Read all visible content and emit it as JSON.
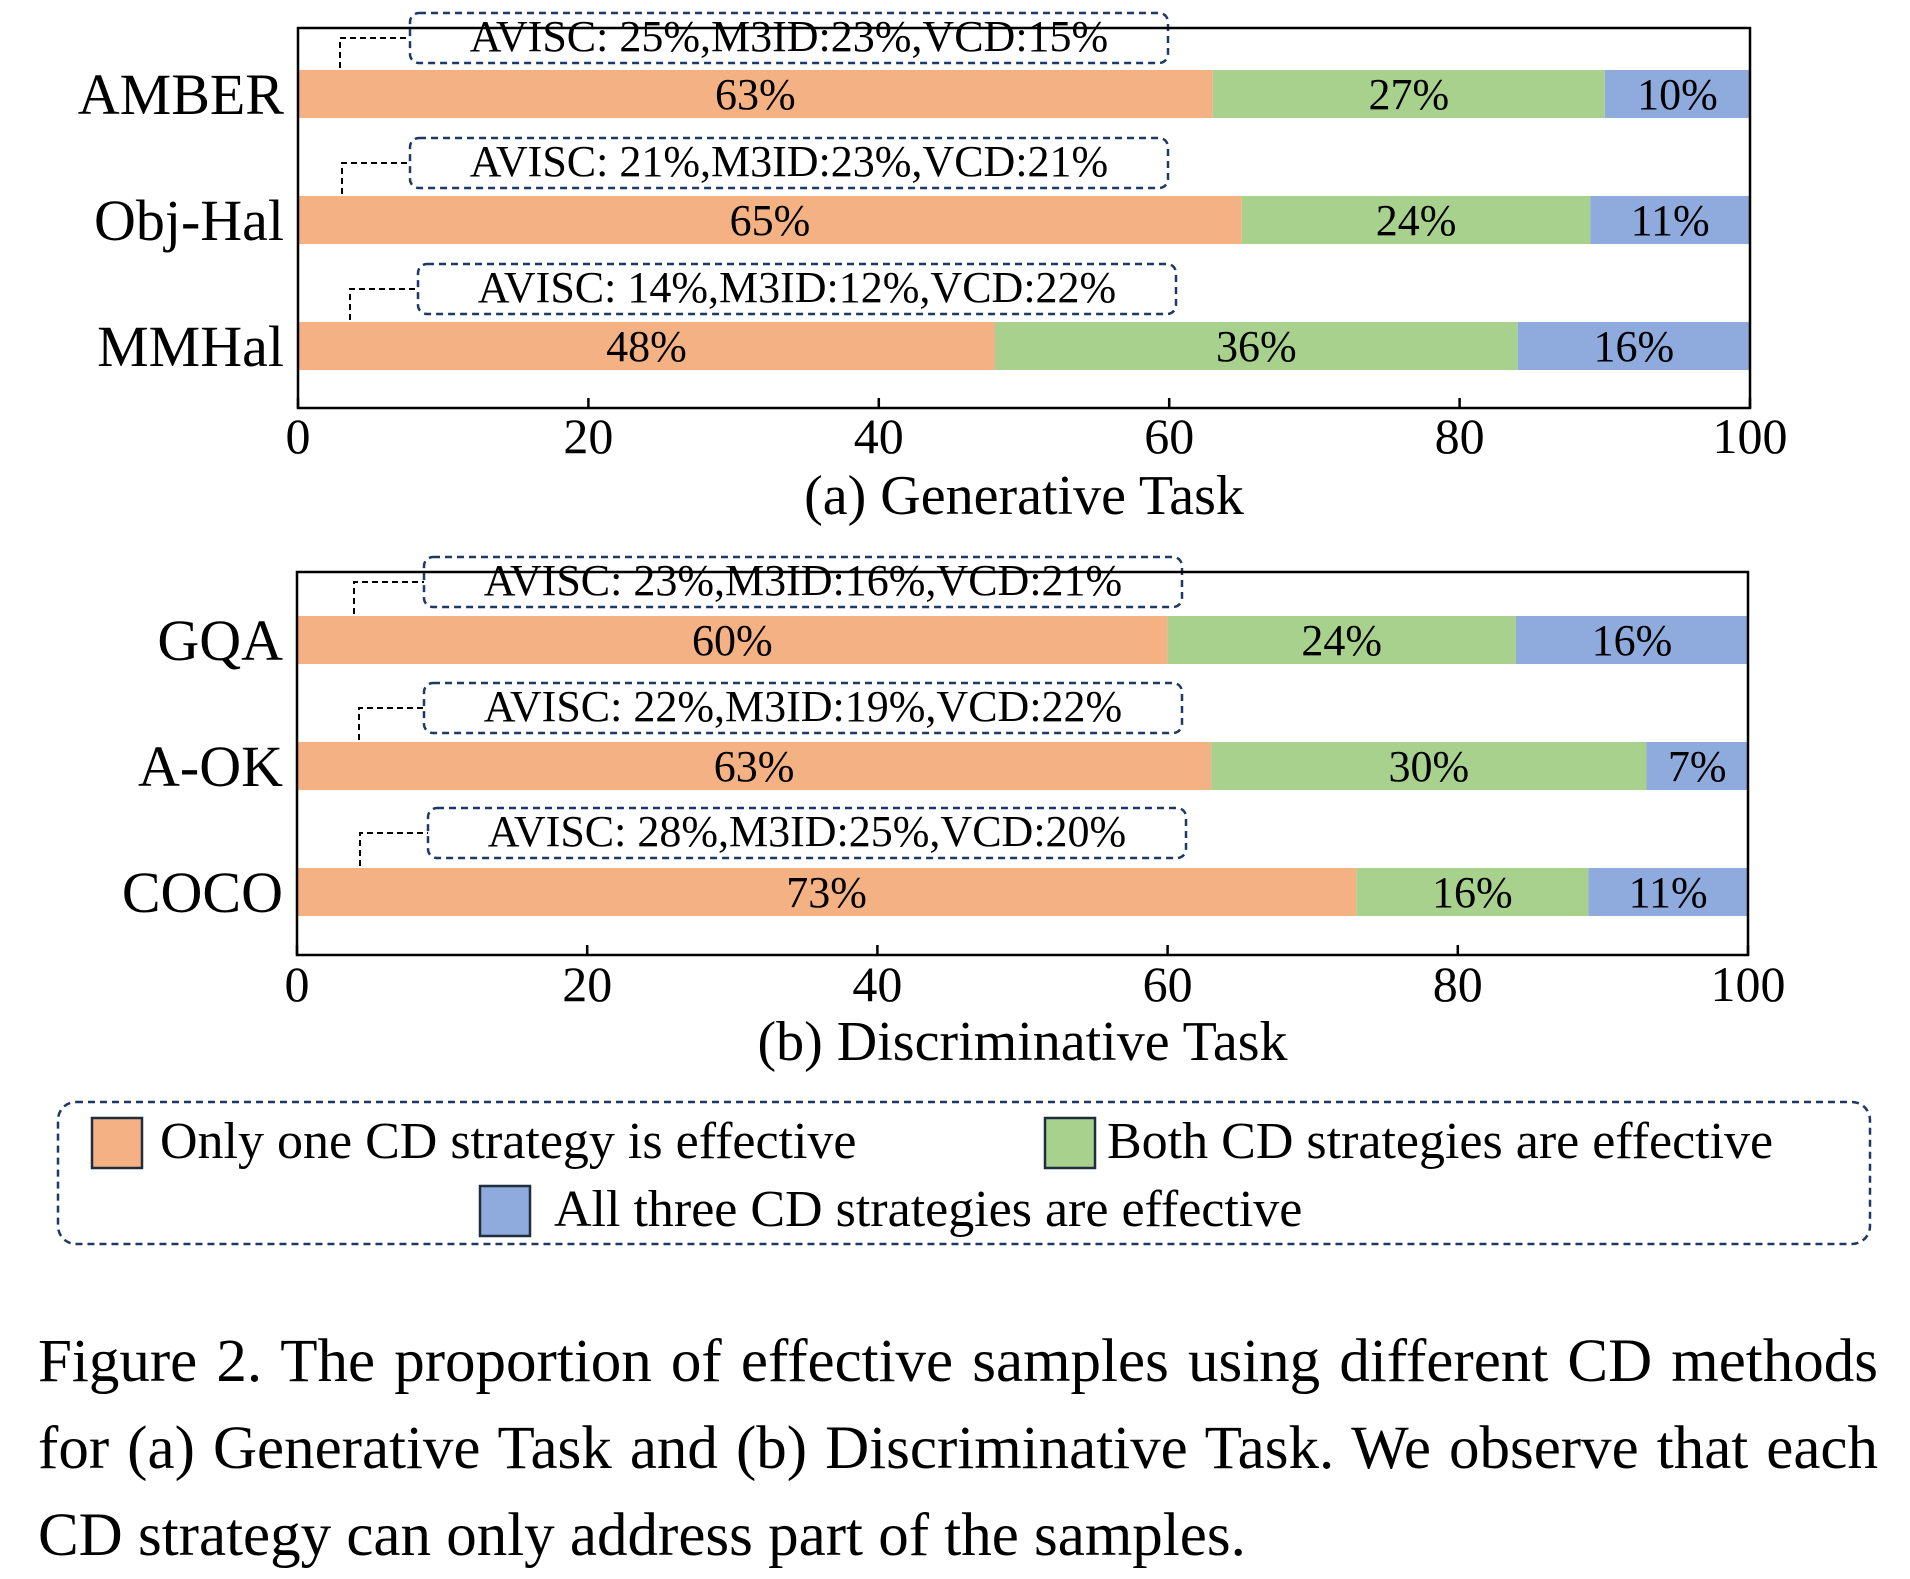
{
  "colors": {
    "only_one": "#f4b183",
    "both": "#a9d18e",
    "all_three": "#8faadc",
    "axis": "#000000",
    "dashed_box": "#1f3864"
  },
  "chart_data": [
    {
      "type": "bar",
      "orientation": "horizontal",
      "stacked": true,
      "subtitle": "(a) Generative Task",
      "categories": [
        "AMBER",
        "Obj-Hal",
        "MMHal"
      ],
      "series": [
        {
          "name": "Only one CD strategy is effective",
          "values": [
            63,
            65,
            48
          ]
        },
        {
          "name": "Both CD strategies are effective",
          "values": [
            27,
            24,
            36
          ]
        },
        {
          "name": "All three CD strategies are effective",
          "values": [
            10,
            11,
            16
          ]
        }
      ],
      "bar_labels": [
        [
          "63%",
          "27%",
          "10%"
        ],
        [
          "65%",
          "24%",
          "11%"
        ],
        [
          "48%",
          "36%",
          "16%"
        ]
      ],
      "annotations": [
        "AVISC: 25%,M3ID:23%,VCD:15%",
        "AVISC: 21%,M3ID:23%,VCD:21%",
        "AVISC: 14%,M3ID:12%,VCD:22%"
      ],
      "xlim": [
        0,
        100
      ],
      "xticks": [
        "0",
        "20",
        "40",
        "60",
        "80",
        "100"
      ],
      "grid": false
    },
    {
      "type": "bar",
      "orientation": "horizontal",
      "stacked": true,
      "subtitle": "(b) Discriminative Task",
      "categories": [
        "GQA",
        "A-OK",
        "COCO"
      ],
      "series": [
        {
          "name": "Only one CD strategy is effective",
          "values": [
            60,
            63,
            73
          ]
        },
        {
          "name": "Both CD strategies are effective",
          "values": [
            24,
            30,
            16
          ]
        },
        {
          "name": "All three CD strategies are effective",
          "values": [
            16,
            7,
            11
          ]
        }
      ],
      "bar_labels": [
        [
          "60%",
          "24%",
          "16%"
        ],
        [
          "63%",
          "30%",
          "7%"
        ],
        [
          "73%",
          "16%",
          "11%"
        ]
      ],
      "annotations": [
        "AVISC: 23%,M3ID:16%,VCD:21%",
        "AVISC: 22%,M3ID:19%,VCD:22%",
        "AVISC: 28%,M3ID:25%,VCD:20%"
      ],
      "xlim": [
        0,
        100
      ],
      "xticks": [
        "0",
        "20",
        "40",
        "60",
        "80",
        "100"
      ],
      "grid": false
    }
  ],
  "legend": {
    "placement": "bottom",
    "items": [
      "Only one CD strategy is effective",
      "Both CD strategies are effective",
      "All three CD strategies are effective"
    ]
  },
  "caption": "Figure 2. The proportion of effective samples using different CD methods for (a) Generative Task and (b) Discriminative Task. We observe that each CD strategy can only address part of the samples."
}
